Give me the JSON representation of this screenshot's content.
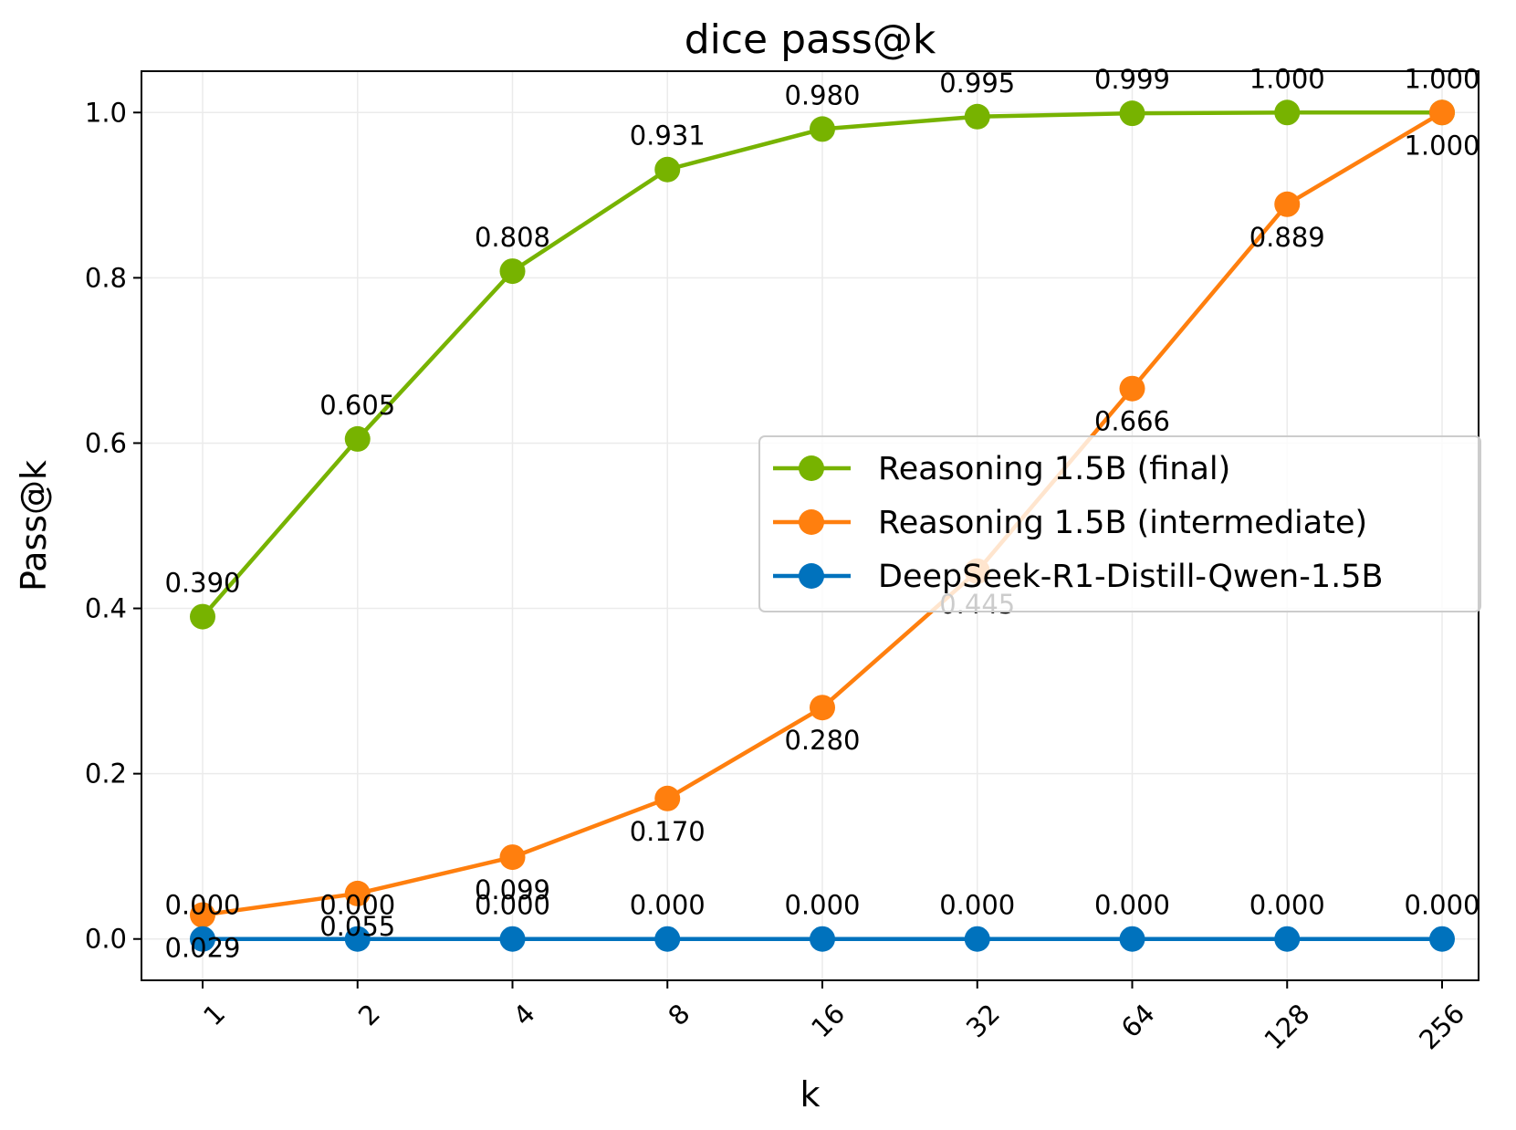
{
  "chart_data": {
    "type": "line",
    "title": "dice pass@k",
    "xlabel": "k",
    "ylabel": "Pass@k",
    "categories": [
      "1",
      "2",
      "4",
      "8",
      "16",
      "32",
      "64",
      "128",
      "256"
    ],
    "yticks": [
      "0.0",
      "0.2",
      "0.4",
      "0.6",
      "0.8",
      "1.0"
    ],
    "ylim": [
      -0.05,
      1.05
    ],
    "grid": true,
    "legend_position": "center-right",
    "series": [
      {
        "name": "Reasoning 1.5B (final)",
        "color": "#77b300",
        "values": [
          0.39,
          0.605,
          0.808,
          0.931,
          0.98,
          0.995,
          0.999,
          1.0,
          1.0
        ],
        "labels": [
          "0.390",
          "0.605",
          "0.808",
          "0.931",
          "0.980",
          "0.995",
          "0.999",
          "1.000",
          "1.000"
        ],
        "label_position": "above"
      },
      {
        "name": "Reasoning 1.5B (intermediate)",
        "color": "#ff7f0e",
        "values": [
          0.029,
          0.055,
          0.099,
          0.17,
          0.28,
          0.445,
          0.666,
          0.889,
          1.0
        ],
        "labels": [
          "0.029",
          "0.055",
          "0.099",
          "0.170",
          "0.280",
          "0.445",
          "0.666",
          "0.889",
          "1.000"
        ],
        "label_position": "below"
      },
      {
        "name": "DeepSeek-R1-Distill-Qwen-1.5B",
        "color": "#0072bd",
        "values": [
          0.0,
          0.0,
          0.0,
          0.0,
          0.0,
          0.0,
          0.0,
          0.0,
          0.0
        ],
        "labels": [
          "0.000",
          "0.000",
          "0.000",
          "0.000",
          "0.000",
          "0.000",
          "0.000",
          "0.000",
          "0.000"
        ],
        "label_position": "above"
      }
    ]
  }
}
